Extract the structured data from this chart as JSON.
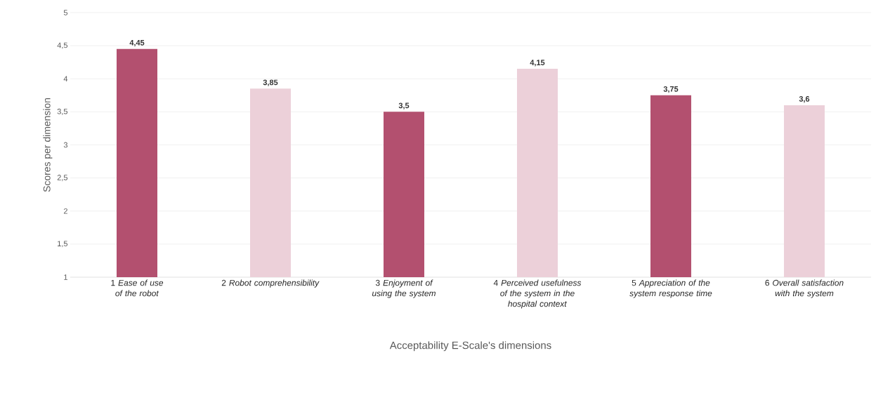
{
  "chart_data": {
    "type": "bar",
    "xlabel": "Acceptability E-Scale's dimensions",
    "ylabel": "Scores per dimension",
    "categories": [
      "1 *Ease of use of the robot*",
      "2 *Robot comprehensibility*",
      "3 *Enjoyment of using the system*",
      "4 *Perceived usefulness of the system in the hospital context*",
      "5 *Appreciation of the system response time*",
      "6 *Overall satisfaction with the system*"
    ],
    "values": [
      4.45,
      3.85,
      3.5,
      4.15,
      3.75,
      3.6
    ],
    "value_labels": [
      "4,45",
      "3,85",
      "3,5",
      "4,15",
      "3,75",
      "3,6"
    ],
    "colors": [
      "#b3506f",
      "#ecd0d9",
      "#b3506f",
      "#ecd0d9",
      "#b3506f",
      "#ecd0d9"
    ],
    "ylim": [
      1,
      5
    ],
    "yticks": [
      1,
      {
        "value": 1.5,
        "label": "1,5"
      },
      2,
      {
        "value": 2.5,
        "label": "2,5"
      },
      3,
      {
        "value": 3.5,
        "label": "3,5"
      },
      4,
      {
        "value": 4.5,
        "label": "4,5"
      },
      5
    ],
    "grid": "y"
  }
}
